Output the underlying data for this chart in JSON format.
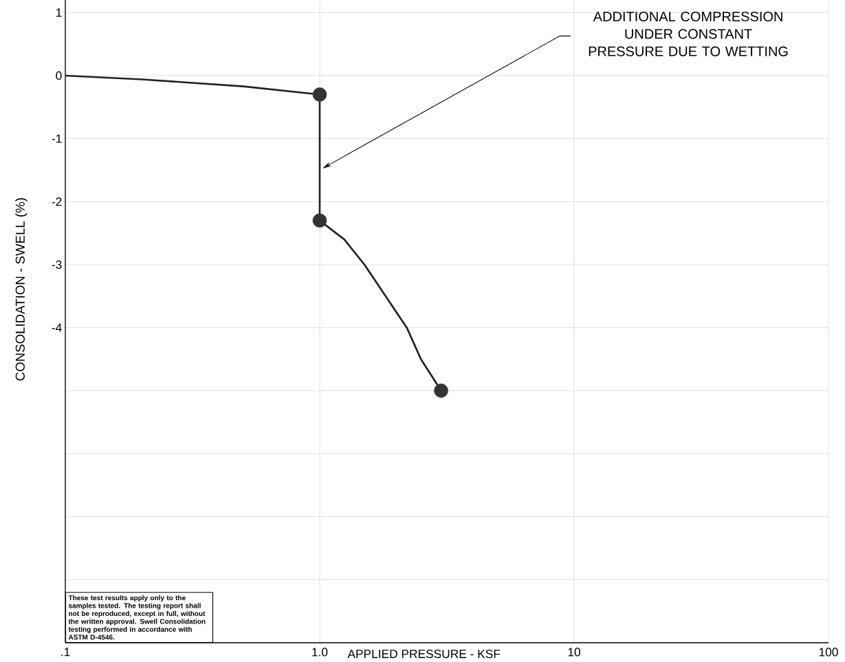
{
  "chart_data": {
    "type": "line",
    "xlabel": "APPLIED PRESSURE - KSF",
    "ylabel": "CONSOLIDATION - SWELL (%)",
    "log": "x",
    "grid": true,
    "line_style": "solid",
    "xlim": [
      0.1,
      100
    ],
    "ylim": [
      -9,
      1.2
    ],
    "xticks": [
      {
        "value": 0.1,
        "label": ".1"
      },
      {
        "value": 1,
        "label": "1.0"
      },
      10,
      100
    ],
    "yticks": [
      1,
      0,
      -1,
      -2,
      -3,
      -4,
      {
        "value": -5,
        "label": null
      },
      {
        "value": -6,
        "label": null
      },
      {
        "value": -7,
        "label": null
      },
      {
        "value": -8,
        "label": null
      }
    ],
    "series": [
      {
        "type": "line",
        "marker": "none",
        "color": "#222222",
        "x": [
          0.1,
          0.2,
          0.5,
          1,
          1,
          1.25,
          1.5,
          2.2,
          2.5,
          3
        ],
        "values": [
          0,
          -0.06,
          -0.17,
          -0.3,
          -2.3,
          -2.6,
          -3.0,
          -4.0,
          -4.5,
          -5.0
        ]
      },
      {
        "type": "scatter",
        "marker": "circle",
        "color": "#333333",
        "x": [
          1,
          1,
          3
        ],
        "values": [
          -0.3,
          -2.3,
          -5.0
        ]
      }
    ],
    "annotations": [
      "ADDITIONAL COMPRESSION UNDER CONSTANT PRESSURE DUE TO WETTING",
      "These test results apply only to the samples tested. The testing report shall not be reproduced, except in full, without the written approval. Swell Consolidation testing performed in accordance with ASTM D-4546."
    ]
  }
}
